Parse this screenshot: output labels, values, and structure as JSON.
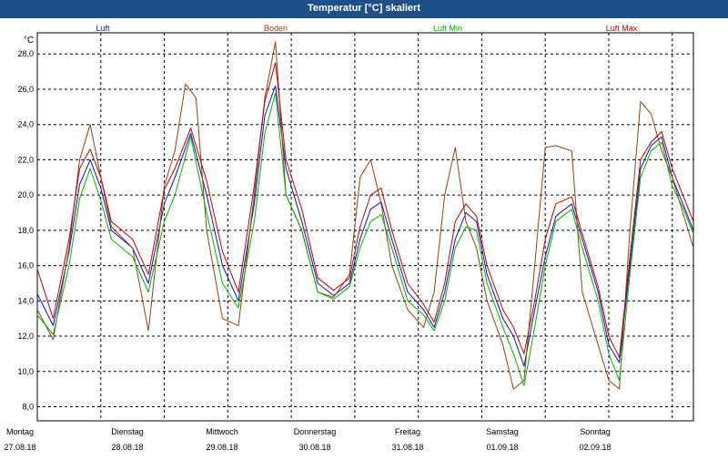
{
  "window": {
    "title": "Temperatur [°C] skaliert"
  },
  "chart_data": {
    "type": "line",
    "ylabel": "°C",
    "ylim": [
      7.2,
      29.2
    ],
    "yticks": [
      "8,0",
      "10,0",
      "12,0",
      "14,0",
      "16,0",
      "18,0",
      "20,0",
      "22,0",
      "24,0",
      "26,0",
      "28,0"
    ],
    "ytick_values": [
      8,
      10,
      12,
      14,
      16,
      18,
      20,
      22,
      24,
      26,
      28
    ],
    "grid": true,
    "legend_placement": "top",
    "x_days": [
      {
        "day": "Montag",
        "date": "27.08.18"
      },
      {
        "day": "Dienstag",
        "date": "28.08.18"
      },
      {
        "day": "Mittwoch",
        "date": "29.08.18"
      },
      {
        "day": "Donnerstag",
        "date": "30.08.18"
      },
      {
        "day": "Freitag",
        "date": "31.08.18"
      },
      {
        "day": "Samstag",
        "date": "01.09.18"
      },
      {
        "day": "Sonntag",
        "date": "02.09.18"
      }
    ],
    "x_unit": "hours since 27.08.18 00:00",
    "series": [
      {
        "name": "Luft",
        "color": "#1010c0",
        "points": [
          [
            0,
            14.4
          ],
          [
            6,
            12.6
          ],
          [
            12,
            16.8
          ],
          [
            16,
            20.6
          ],
          [
            20,
            22.0
          ],
          [
            24,
            20.4
          ],
          [
            28,
            18.0
          ],
          [
            36,
            17.0
          ],
          [
            42,
            15.0
          ],
          [
            48,
            19.5
          ],
          [
            52,
            21.0
          ],
          [
            58,
            23.5
          ],
          [
            64,
            20.0
          ],
          [
            70,
            16.0
          ],
          [
            76,
            14.0
          ],
          [
            82,
            19.5
          ],
          [
            86,
            24.5
          ],
          [
            90,
            26.2
          ],
          [
            94,
            21.5
          ],
          [
            100,
            18.5
          ],
          [
            106,
            15.0
          ],
          [
            112,
            14.3
          ],
          [
            118,
            15.0
          ],
          [
            122,
            17.5
          ],
          [
            126,
            19.2
          ],
          [
            130,
            19.6
          ],
          [
            134,
            17.5
          ],
          [
            140,
            14.5
          ],
          [
            146,
            13.5
          ],
          [
            150,
            12.5
          ],
          [
            154,
            14.5
          ],
          [
            158,
            17.5
          ],
          [
            162,
            19.0
          ],
          [
            166,
            18.5
          ],
          [
            170,
            15.5
          ],
          [
            176,
            13.0
          ],
          [
            180,
            12.0
          ],
          [
            184,
            10.3
          ],
          [
            188,
            13.5
          ],
          [
            192,
            16.5
          ],
          [
            196,
            18.8
          ],
          [
            202,
            19.5
          ],
          [
            206,
            17.5
          ],
          [
            212,
            14.5
          ],
          [
            216,
            11.5
          ],
          [
            220,
            10.5
          ],
          [
            224,
            16.0
          ],
          [
            228,
            21.5
          ],
          [
            232,
            22.8
          ],
          [
            236,
            23.3
          ],
          [
            240,
            21.0
          ],
          [
            244,
            19.5
          ],
          [
            248,
            18.0
          ]
        ]
      },
      {
        "name": "Boden",
        "color": "#8b4513",
        "points": [
          [
            0,
            13.5
          ],
          [
            6,
            11.8
          ],
          [
            12,
            17.0
          ],
          [
            16,
            22.0
          ],
          [
            20,
            24.0
          ],
          [
            24,
            21.0
          ],
          [
            28,
            18.2
          ],
          [
            36,
            17.0
          ],
          [
            42,
            12.3
          ],
          [
            48,
            20.5
          ],
          [
            52,
            22.5
          ],
          [
            56,
            26.3
          ],
          [
            60,
            25.5
          ],
          [
            64,
            18.0
          ],
          [
            70,
            13.0
          ],
          [
            76,
            12.6
          ],
          [
            82,
            20.0
          ],
          [
            86,
            25.5
          ],
          [
            90,
            28.7
          ],
          [
            94,
            20.0
          ],
          [
            100,
            18.0
          ],
          [
            106,
            14.5
          ],
          [
            112,
            14.2
          ],
          [
            118,
            15.5
          ],
          [
            122,
            21.0
          ],
          [
            126,
            22.0
          ],
          [
            130,
            19.5
          ],
          [
            134,
            16.0
          ],
          [
            140,
            13.5
          ],
          [
            146,
            12.5
          ],
          [
            150,
            14.5
          ],
          [
            154,
            20.0
          ],
          [
            158,
            22.7
          ],
          [
            162,
            18.5
          ],
          [
            166,
            17.0
          ],
          [
            170,
            14.0
          ],
          [
            176,
            11.5
          ],
          [
            180,
            9.0
          ],
          [
            184,
            9.5
          ],
          [
            188,
            16.0
          ],
          [
            192,
            22.7
          ],
          [
            196,
            22.8
          ],
          [
            202,
            22.5
          ],
          [
            206,
            14.5
          ],
          [
            212,
            11.5
          ],
          [
            216,
            9.5
          ],
          [
            220,
            9.0
          ],
          [
            224,
            18.0
          ],
          [
            228,
            25.3
          ],
          [
            232,
            24.6
          ],
          [
            236,
            22.5
          ],
          [
            240,
            21.0
          ],
          [
            244,
            19.0
          ],
          [
            248,
            17.0
          ]
        ]
      },
      {
        "name": "Luft Min",
        "color": "#00b400",
        "points": [
          [
            0,
            13.2
          ],
          [
            6,
            12.1
          ],
          [
            12,
            16.0
          ],
          [
            16,
            19.8
          ],
          [
            20,
            21.5
          ],
          [
            24,
            19.7
          ],
          [
            28,
            17.5
          ],
          [
            36,
            16.5
          ],
          [
            42,
            14.5
          ],
          [
            48,
            18.5
          ],
          [
            52,
            20.0
          ],
          [
            58,
            23.3
          ],
          [
            64,
            19.0
          ],
          [
            70,
            15.0
          ],
          [
            76,
            13.6
          ],
          [
            82,
            18.5
          ],
          [
            86,
            23.5
          ],
          [
            90,
            25.8
          ],
          [
            94,
            20.0
          ],
          [
            100,
            18.0
          ],
          [
            106,
            14.5
          ],
          [
            112,
            14.1
          ],
          [
            118,
            14.8
          ],
          [
            122,
            17.0
          ],
          [
            126,
            18.5
          ],
          [
            130,
            18.9
          ],
          [
            134,
            17.0
          ],
          [
            140,
            14.0
          ],
          [
            146,
            13.2
          ],
          [
            150,
            12.3
          ],
          [
            154,
            14.0
          ],
          [
            158,
            17.0
          ],
          [
            162,
            18.2
          ],
          [
            166,
            18.0
          ],
          [
            170,
            15.0
          ],
          [
            176,
            12.5
          ],
          [
            180,
            11.0
          ],
          [
            184,
            9.2
          ],
          [
            188,
            12.5
          ],
          [
            192,
            16.0
          ],
          [
            196,
            18.5
          ],
          [
            202,
            19.2
          ],
          [
            206,
            17.0
          ],
          [
            212,
            14.0
          ],
          [
            216,
            11.0
          ],
          [
            220,
            9.5
          ],
          [
            224,
            15.5
          ],
          [
            228,
            21.0
          ],
          [
            232,
            22.5
          ],
          [
            236,
            23.0
          ],
          [
            240,
            20.5
          ],
          [
            244,
            19.3
          ],
          [
            248,
            17.8
          ]
        ]
      },
      {
        "name": "Luft Max",
        "color": "#c00000",
        "points": [
          [
            0,
            15.8
          ],
          [
            6,
            13.0
          ],
          [
            12,
            17.5
          ],
          [
            16,
            21.5
          ],
          [
            20,
            22.6
          ],
          [
            24,
            21.0
          ],
          [
            28,
            18.5
          ],
          [
            36,
            17.5
          ],
          [
            42,
            15.5
          ],
          [
            48,
            20.3
          ],
          [
            52,
            21.5
          ],
          [
            58,
            23.8
          ],
          [
            64,
            20.8
          ],
          [
            70,
            16.8
          ],
          [
            76,
            14.5
          ],
          [
            82,
            20.5
          ],
          [
            86,
            25.3
          ],
          [
            90,
            27.5
          ],
          [
            94,
            22.0
          ],
          [
            100,
            19.2
          ],
          [
            106,
            15.3
          ],
          [
            112,
            14.6
          ],
          [
            118,
            15.3
          ],
          [
            122,
            18.2
          ],
          [
            126,
            20.0
          ],
          [
            130,
            20.4
          ],
          [
            134,
            18.0
          ],
          [
            140,
            15.0
          ],
          [
            146,
            13.8
          ],
          [
            150,
            12.8
          ],
          [
            154,
            15.0
          ],
          [
            158,
            18.5
          ],
          [
            162,
            19.5
          ],
          [
            166,
            18.8
          ],
          [
            170,
            16.0
          ],
          [
            176,
            13.5
          ],
          [
            180,
            12.5
          ],
          [
            184,
            11.0
          ],
          [
            188,
            14.0
          ],
          [
            192,
            17.5
          ],
          [
            196,
            19.5
          ],
          [
            202,
            19.9
          ],
          [
            206,
            17.8
          ],
          [
            212,
            14.8
          ],
          [
            216,
            12.0
          ],
          [
            220,
            10.8
          ],
          [
            224,
            16.5
          ],
          [
            228,
            22.0
          ],
          [
            232,
            23.0
          ],
          [
            236,
            23.6
          ],
          [
            240,
            21.5
          ],
          [
            244,
            20.0
          ],
          [
            248,
            18.5
          ]
        ]
      }
    ]
  }
}
